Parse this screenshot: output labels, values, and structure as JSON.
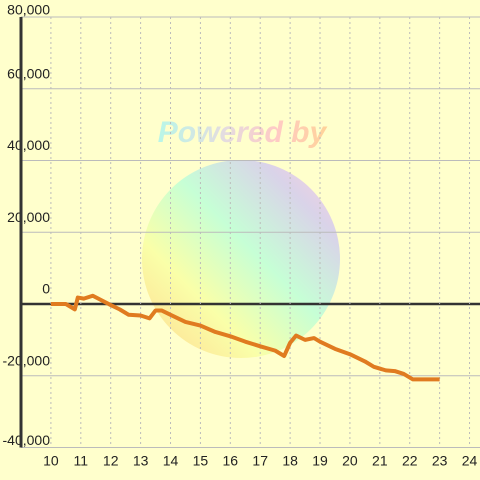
{
  "chart_data": {
    "type": "line",
    "watermark": "Powered by",
    "x": [
      10,
      10.5,
      10.8,
      10.9,
      11.1,
      11.4,
      11.7,
      12,
      12.3,
      12.6,
      13,
      13.3,
      13.5,
      13.7,
      14,
      14.5,
      15,
      15.5,
      16,
      16.5,
      17,
      17.5,
      17.8,
      18,
      18.2,
      18.5,
      18.8,
      19,
      19.5,
      20,
      20.5,
      20.8,
      21.2,
      21.5,
      21.8,
      22.1,
      22.6,
      23
    ],
    "series": [
      {
        "color": "#e07b20",
        "values": [
          0,
          0,
          -1500,
          1800,
          1500,
          2300,
          1000,
          -300,
          -1500,
          -3000,
          -3200,
          -4000,
          -1800,
          -1800,
          -3000,
          -5000,
          -6000,
          -7800,
          -9000,
          -10500,
          -11800,
          -13000,
          -14500,
          -10800,
          -8800,
          -10000,
          -9500,
          -10500,
          -12500,
          -14000,
          -16000,
          -17500,
          -18500,
          -18700,
          -19500,
          -21000,
          -21000,
          -21000
        ]
      }
    ],
    "xlim": [
      9,
      24.35
    ],
    "xticks": [
      10,
      11,
      12,
      13,
      14,
      15,
      16,
      17,
      18,
      19,
      20,
      21,
      22,
      23,
      24
    ],
    "ylim": [
      -40000,
      80000
    ],
    "yticks": [
      {
        "value": -40000,
        "label": "-40,000"
      },
      {
        "value": -20000,
        "label": "-20,000"
      },
      0,
      {
        "value": 20000,
        "label": "20,000"
      },
      {
        "value": 40000,
        "label": "40,000"
      },
      {
        "value": 60000,
        "label": "60,000"
      },
      {
        "value": 80000,
        "label": "80,000"
      }
    ],
    "grid": true
  }
}
